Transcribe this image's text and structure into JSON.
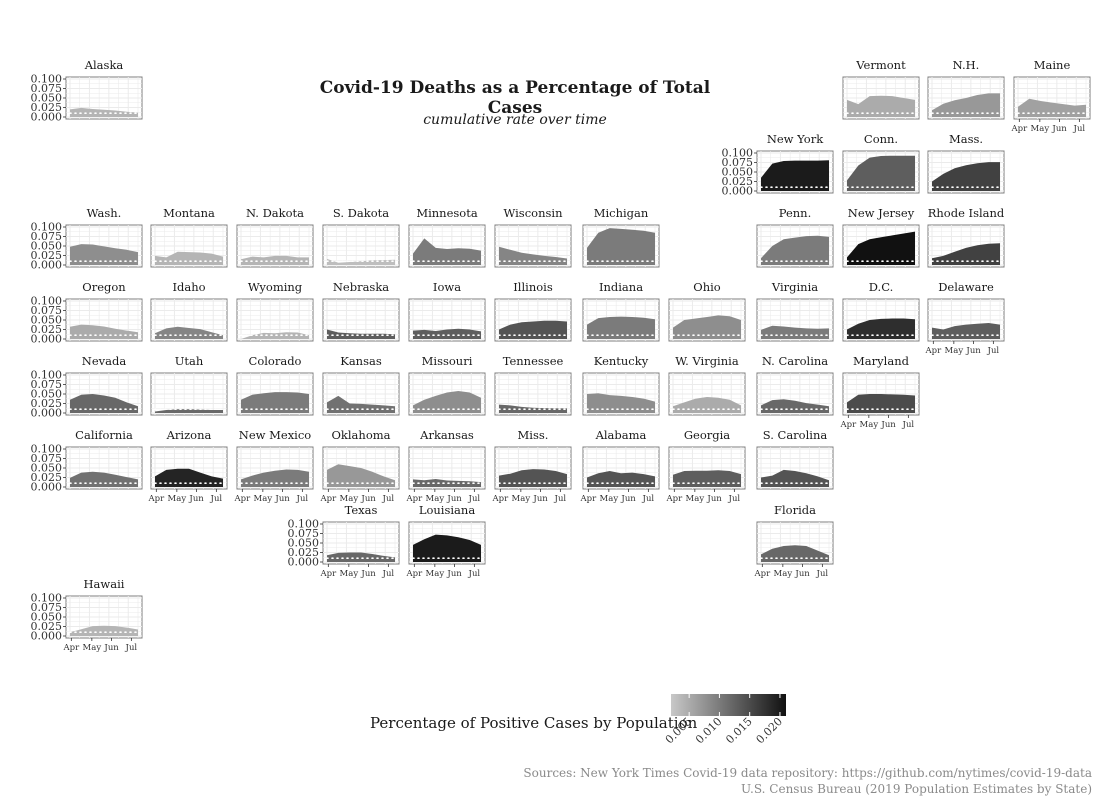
{
  "chart_data": {
    "type": "area",
    "title": "Covid-19 Deaths as a Percentage of Total Cases",
    "subtitle": "cumulative rate over time",
    "y_ticks": [
      "0.100",
      "0.075",
      "0.050",
      "0.025",
      "0.000"
    ],
    "ylim": [
      0,
      0.1
    ],
    "x_ticks": [
      "Apr",
      "May",
      "Jun",
      "Jul"
    ],
    "grid": true,
    "dotted_reference_line": 0.01,
    "legend": {
      "title": "Percentage of Positive Cases by Population",
      "ticks": [
        "0.005",
        "0.010",
        "0.015",
        "0.020"
      ],
      "range": [
        0.002,
        0.021
      ],
      "colors": [
        "#c8c8c8",
        "#111111"
      ]
    },
    "caption": [
      "Sources: New York Times Covid-19 data repository: https://github.com/nytimes/covid-19-data",
      "U.S. Census Bureau (2019 Population Estimates by State)"
    ],
    "states": [
      {
        "name": "Alaska",
        "shade": 0.004,
        "values": [
          0.02,
          0.024,
          0.021,
          0.019,
          0.017,
          0.014,
          0.011
        ]
      },
      {
        "name": "Vermont",
        "shade": 0.005,
        "values": [
          0.045,
          0.034,
          0.055,
          0.056,
          0.055,
          0.05,
          0.045
        ]
      },
      {
        "name": "N.H.",
        "shade": 0.007,
        "values": [
          0.018,
          0.035,
          0.044,
          0.05,
          0.058,
          0.062,
          0.062
        ]
      },
      {
        "name": "Maine",
        "shade": 0.006,
        "values": [
          0.027,
          0.048,
          0.042,
          0.038,
          0.034,
          0.03,
          0.032
        ]
      },
      {
        "name": "New York",
        "shade": 0.02,
        "values": [
          0.035,
          0.072,
          0.079,
          0.08,
          0.08,
          0.08,
          0.081
        ]
      },
      {
        "name": "Conn.",
        "shade": 0.013,
        "values": [
          0.028,
          0.067,
          0.088,
          0.092,
          0.093,
          0.093,
          0.093
        ]
      },
      {
        "name": "Mass.",
        "shade": 0.016,
        "values": [
          0.025,
          0.045,
          0.06,
          0.068,
          0.073,
          0.076,
          0.076
        ]
      },
      {
        "name": "Wash.",
        "shade": 0.008,
        "values": [
          0.048,
          0.055,
          0.054,
          0.049,
          0.044,
          0.04,
          0.034
        ]
      },
      {
        "name": "Montana",
        "shade": 0.004,
        "values": [
          0.024,
          0.02,
          0.035,
          0.034,
          0.033,
          0.03,
          0.022
        ]
      },
      {
        "name": "N. Dakota",
        "shade": 0.004,
        "values": [
          0.015,
          0.022,
          0.02,
          0.024,
          0.024,
          0.02,
          0.02
        ]
      },
      {
        "name": "S. Dakota",
        "shade": 0.003,
        "values": [
          0.016,
          0.006,
          0.008,
          0.01,
          0.012,
          0.013,
          0.014
        ]
      },
      {
        "name": "Minnesota",
        "shade": 0.01,
        "values": [
          0.03,
          0.07,
          0.045,
          0.042,
          0.044,
          0.043,
          0.038
        ]
      },
      {
        "name": "Wisconsin",
        "shade": 0.009,
        "values": [
          0.048,
          0.04,
          0.032,
          0.028,
          0.024,
          0.021,
          0.017
        ]
      },
      {
        "name": "Michigan",
        "shade": 0.01,
        "values": [
          0.045,
          0.085,
          0.097,
          0.095,
          0.093,
          0.09,
          0.085
        ]
      },
      {
        "name": "Penn.",
        "shade": 0.01,
        "values": [
          0.018,
          0.05,
          0.068,
          0.072,
          0.076,
          0.077,
          0.074
        ]
      },
      {
        "name": "New Jersey",
        "shade": 0.021,
        "values": [
          0.02,
          0.055,
          0.068,
          0.073,
          0.078,
          0.083,
          0.088
        ]
      },
      {
        "name": "Rhode Island",
        "shade": 0.016,
        "values": [
          0.018,
          0.024,
          0.035,
          0.045,
          0.052,
          0.056,
          0.057
        ]
      },
      {
        "name": "Oregon",
        "shade": 0.005,
        "values": [
          0.032,
          0.038,
          0.036,
          0.033,
          0.027,
          0.022,
          0.018
        ]
      },
      {
        "name": "Idaho",
        "shade": 0.009,
        "values": [
          0.015,
          0.028,
          0.032,
          0.029,
          0.026,
          0.018,
          0.01
        ]
      },
      {
        "name": "Wyoming",
        "shade": 0.004,
        "values": [
          0.0,
          0.01,
          0.016,
          0.015,
          0.018,
          0.017,
          0.01
        ]
      },
      {
        "name": "Nebraska",
        "shade": 0.013,
        "values": [
          0.025,
          0.017,
          0.015,
          0.014,
          0.014,
          0.014,
          0.012
        ]
      },
      {
        "name": "Iowa",
        "shade": 0.013,
        "values": [
          0.022,
          0.024,
          0.021,
          0.025,
          0.027,
          0.025,
          0.02
        ]
      },
      {
        "name": "Illinois",
        "shade": 0.014,
        "values": [
          0.025,
          0.038,
          0.044,
          0.046,
          0.048,
          0.048,
          0.046
        ]
      },
      {
        "name": "Indiana",
        "shade": 0.01,
        "values": [
          0.038,
          0.055,
          0.058,
          0.059,
          0.058,
          0.056,
          0.052
        ]
      },
      {
        "name": "Ohio",
        "shade": 0.008,
        "values": [
          0.03,
          0.05,
          0.054,
          0.058,
          0.062,
          0.06,
          0.05
        ]
      },
      {
        "name": "Virginia",
        "shade": 0.01,
        "values": [
          0.024,
          0.035,
          0.033,
          0.03,
          0.028,
          0.027,
          0.028
        ]
      },
      {
        "name": "D.C.",
        "shade": 0.018,
        "values": [
          0.025,
          0.04,
          0.05,
          0.053,
          0.054,
          0.054,
          0.052
        ]
      },
      {
        "name": "Delaware",
        "shade": 0.013,
        "values": [
          0.03,
          0.025,
          0.034,
          0.038,
          0.04,
          0.042,
          0.038
        ]
      },
      {
        "name": "Nevada",
        "shade": 0.012,
        "values": [
          0.035,
          0.048,
          0.05,
          0.046,
          0.04,
          0.028,
          0.018
        ]
      },
      {
        "name": "Utah",
        "shade": 0.012,
        "values": [
          0.004,
          0.008,
          0.01,
          0.01,
          0.009,
          0.008,
          0.008
        ]
      },
      {
        "name": "Colorado",
        "shade": 0.01,
        "values": [
          0.035,
          0.048,
          0.052,
          0.055,
          0.055,
          0.054,
          0.05
        ]
      },
      {
        "name": "Kansas",
        "shade": 0.011,
        "values": [
          0.028,
          0.045,
          0.025,
          0.024,
          0.022,
          0.02,
          0.018
        ]
      },
      {
        "name": "Missouri",
        "shade": 0.008,
        "values": [
          0.02,
          0.035,
          0.045,
          0.054,
          0.058,
          0.054,
          0.04
        ]
      },
      {
        "name": "Tennessee",
        "shade": 0.012,
        "values": [
          0.022,
          0.02,
          0.016,
          0.014,
          0.013,
          0.012,
          0.012
        ]
      },
      {
        "name": "Kentucky",
        "shade": 0.008,
        "values": [
          0.05,
          0.052,
          0.047,
          0.045,
          0.042,
          0.038,
          0.03
        ]
      },
      {
        "name": "W. Virginia",
        "shade": 0.005,
        "values": [
          0.018,
          0.028,
          0.038,
          0.042,
          0.04,
          0.035,
          0.02
        ]
      },
      {
        "name": "N. Carolina",
        "shade": 0.012,
        "values": [
          0.02,
          0.034,
          0.036,
          0.032,
          0.026,
          0.022,
          0.018
        ]
      },
      {
        "name": "Maryland",
        "shade": 0.015,
        "values": [
          0.028,
          0.048,
          0.05,
          0.05,
          0.049,
          0.048,
          0.046
        ]
      },
      {
        "name": "California",
        "shade": 0.011,
        "values": [
          0.024,
          0.038,
          0.04,
          0.038,
          0.032,
          0.026,
          0.02
        ]
      },
      {
        "name": "Arizona",
        "shade": 0.019,
        "values": [
          0.028,
          0.045,
          0.048,
          0.048,
          0.038,
          0.028,
          0.022
        ]
      },
      {
        "name": "New Mexico",
        "shade": 0.01,
        "values": [
          0.02,
          0.03,
          0.038,
          0.043,
          0.046,
          0.045,
          0.04
        ]
      },
      {
        "name": "Oklahoma",
        "shade": 0.007,
        "values": [
          0.045,
          0.06,
          0.055,
          0.05,
          0.04,
          0.028,
          0.018
        ]
      },
      {
        "name": "Arkansas",
        "shade": 0.012,
        "values": [
          0.02,
          0.018,
          0.021,
          0.017,
          0.016,
          0.015,
          0.013
        ]
      },
      {
        "name": "Miss.",
        "shade": 0.014,
        "values": [
          0.03,
          0.035,
          0.044,
          0.047,
          0.046,
          0.042,
          0.034
        ]
      },
      {
        "name": "Alabama",
        "shade": 0.014,
        "values": [
          0.025,
          0.036,
          0.042,
          0.036,
          0.038,
          0.034,
          0.028
        ]
      },
      {
        "name": "Georgia",
        "shade": 0.013,
        "values": [
          0.032,
          0.042,
          0.043,
          0.043,
          0.044,
          0.042,
          0.034
        ]
      },
      {
        "name": "S. Carolina",
        "shade": 0.014,
        "values": [
          0.025,
          0.03,
          0.045,
          0.042,
          0.036,
          0.028,
          0.018
        ]
      },
      {
        "name": "Texas",
        "shade": 0.012,
        "values": [
          0.018,
          0.024,
          0.025,
          0.025,
          0.021,
          0.016,
          0.012
        ]
      },
      {
        "name": "Louisiana",
        "shade": 0.02,
        "values": [
          0.045,
          0.06,
          0.072,
          0.07,
          0.065,
          0.058,
          0.045
        ]
      },
      {
        "name": "Florida",
        "shade": 0.012,
        "values": [
          0.02,
          0.035,
          0.042,
          0.044,
          0.042,
          0.03,
          0.018
        ]
      },
      {
        "name": "Hawaii",
        "shade": 0.004,
        "values": [
          0.01,
          0.018,
          0.026,
          0.027,
          0.026,
          0.022,
          0.017
        ]
      }
    ]
  }
}
